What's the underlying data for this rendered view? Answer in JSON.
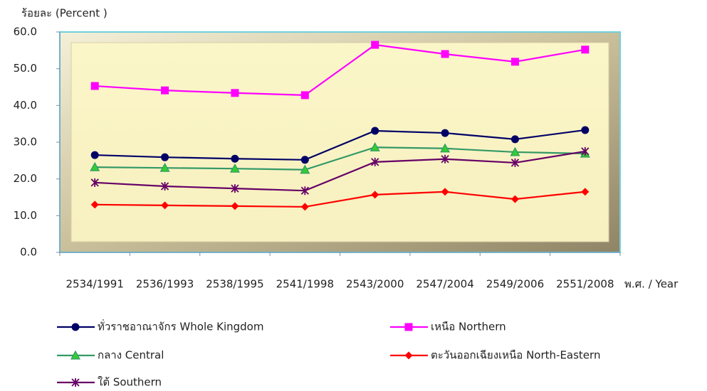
{
  "chart_data": {
    "type": "line",
    "y_label": "ร้อยละ  (Percent )",
    "x_label": "พ.ศ. / Year",
    "categories": [
      "2534/1991",
      "2536/1993",
      "2538/1995",
      "2541/1998",
      "2543/2000",
      "2547/2004",
      "2549/2006",
      "2551/2008"
    ],
    "series": [
      {
        "name": "ทั่วราชอาณาจักร  Whole Kingdom",
        "color": "#000066",
        "marker": "circle",
        "values": [
          26.5,
          25.9,
          25.5,
          25.2,
          33.1,
          32.5,
          30.8,
          33.3
        ]
      },
      {
        "name": "เหนือ  Northern",
        "color": "#ff00ff",
        "marker": "square",
        "values": [
          45.3,
          44.1,
          43.4,
          42.8,
          56.5,
          54.0,
          51.9,
          55.2
        ]
      },
      {
        "name": "กลาง  Central",
        "color": "#339966",
        "marker": "triangle",
        "values": [
          23.2,
          23.0,
          22.8,
          22.5,
          28.6,
          28.3,
          27.3,
          26.9
        ]
      },
      {
        "name": "ตะวันออกเฉียงเหนือ  North-Eastern",
        "color": "#ff0000",
        "marker": "diamond",
        "values": [
          13.0,
          12.8,
          12.6,
          12.4,
          15.7,
          16.5,
          14.5,
          16.5
        ]
      },
      {
        "name": "ใต้  Southern",
        "color": "#660066",
        "marker": "asterisk",
        "values": [
          19.0,
          18.0,
          17.4,
          16.8,
          24.6,
          25.4,
          24.4,
          27.5
        ]
      }
    ],
    "ylim": [
      0,
      60
    ],
    "yticks": [
      {
        "value": 0,
        "label": "0.0"
      },
      {
        "value": 10,
        "label": "10.0"
      },
      {
        "value": 20,
        "label": "20.0"
      },
      {
        "value": 30,
        "label": "30.0"
      },
      {
        "value": 40,
        "label": "40.0"
      },
      {
        "value": 50,
        "label": "50.0"
      },
      {
        "value": 60,
        "label": "60.0"
      }
    ],
    "grid": false
  }
}
